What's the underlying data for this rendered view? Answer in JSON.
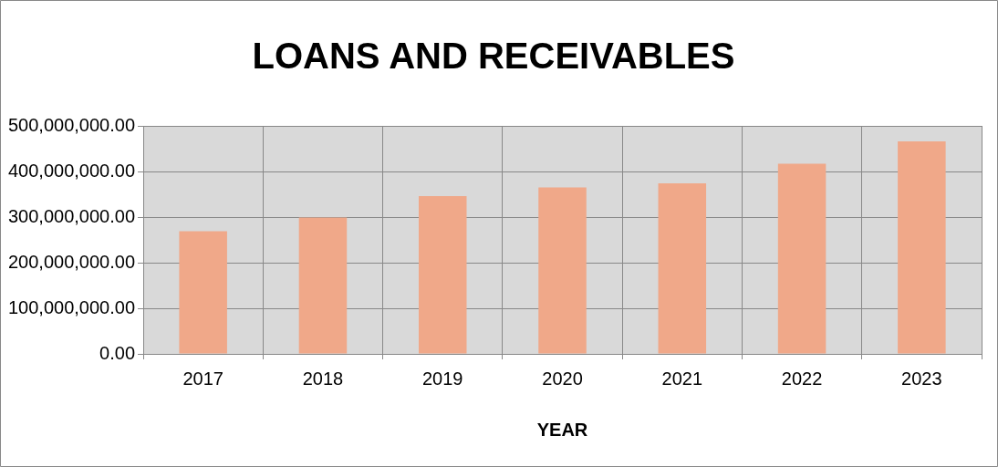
{
  "chart_data": {
    "type": "bar",
    "title": "LOANS AND RECEIVABLES",
    "xlabel": "YEAR",
    "categories": [
      "2017",
      "2018",
      "2019",
      "2020",
      "2021",
      "2022",
      "2023"
    ],
    "values": [
      269000000,
      299000000,
      346000000,
      365000000,
      374000000,
      417000000,
      466000000
    ],
    "color": "#f0a889",
    "ylim": [
      0,
      500000000
    ],
    "yticks": [
      {
        "value": 0,
        "label": "0.00"
      },
      {
        "value": 100000000,
        "label": "100,000,000.00"
      },
      {
        "value": 200000000,
        "label": "200,000,000.00"
      },
      {
        "value": 300000000,
        "label": "300,000,000.00"
      },
      {
        "value": 400000000,
        "label": "400,000,000.00"
      },
      {
        "value": 500000000,
        "label": "500,000,000.00"
      }
    ],
    "grid": true,
    "legend": false
  }
}
